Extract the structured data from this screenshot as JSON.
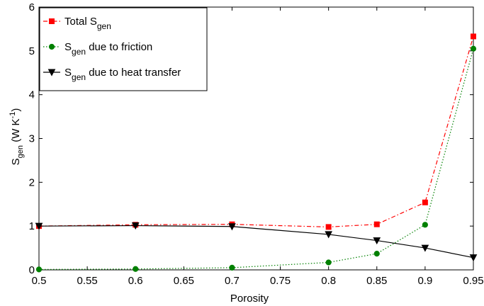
{
  "chart_data": {
    "type": "line",
    "xlabel": "Porosity",
    "ylabel": {
      "main": "S",
      "sub": "gen",
      "unit_pre": " (W K",
      "unit_sup": "-1",
      "unit_post": ")"
    },
    "xlim": [
      0.5,
      0.95
    ],
    "ylim": [
      0,
      6
    ],
    "xticks": [
      "0.5",
      "0.55",
      "0.6",
      "0.65",
      "0.7",
      "0.75",
      "0.8",
      "0.85",
      "0.9",
      "0.95"
    ],
    "yticks": [
      "0",
      "1",
      "2",
      "3",
      "4",
      "5",
      "6"
    ],
    "grid": false,
    "legend_position": "top-left",
    "x": [
      0.5,
      0.6,
      0.7,
      0.8,
      0.85,
      0.9,
      0.95
    ],
    "series": [
      {
        "name": "Total S gen",
        "legend": {
          "pre": "Total S",
          "sub": "gen",
          "post": ""
        },
        "color": "#ff0000",
        "marker": "square",
        "dash": "dash-dot",
        "values": [
          1.0,
          1.03,
          1.04,
          0.98,
          1.04,
          1.54,
          5.33
        ]
      },
      {
        "name": "S gen due to friction",
        "legend": {
          "pre": "S",
          "sub": "gen",
          "post": " due to friction"
        },
        "color": "#008000",
        "marker": "circle",
        "dash": "dotted",
        "values": [
          0.01,
          0.02,
          0.05,
          0.17,
          0.37,
          1.03,
          5.05
        ]
      },
      {
        "name": "S gen due to heat transfer",
        "legend": {
          "pre": "S",
          "sub": "gen",
          "post": " due to heat transfer"
        },
        "color": "#000000",
        "marker": "triangle-down",
        "dash": "solid",
        "values": [
          1.0,
          1.01,
          0.99,
          0.81,
          0.67,
          0.5,
          0.28
        ]
      }
    ]
  }
}
